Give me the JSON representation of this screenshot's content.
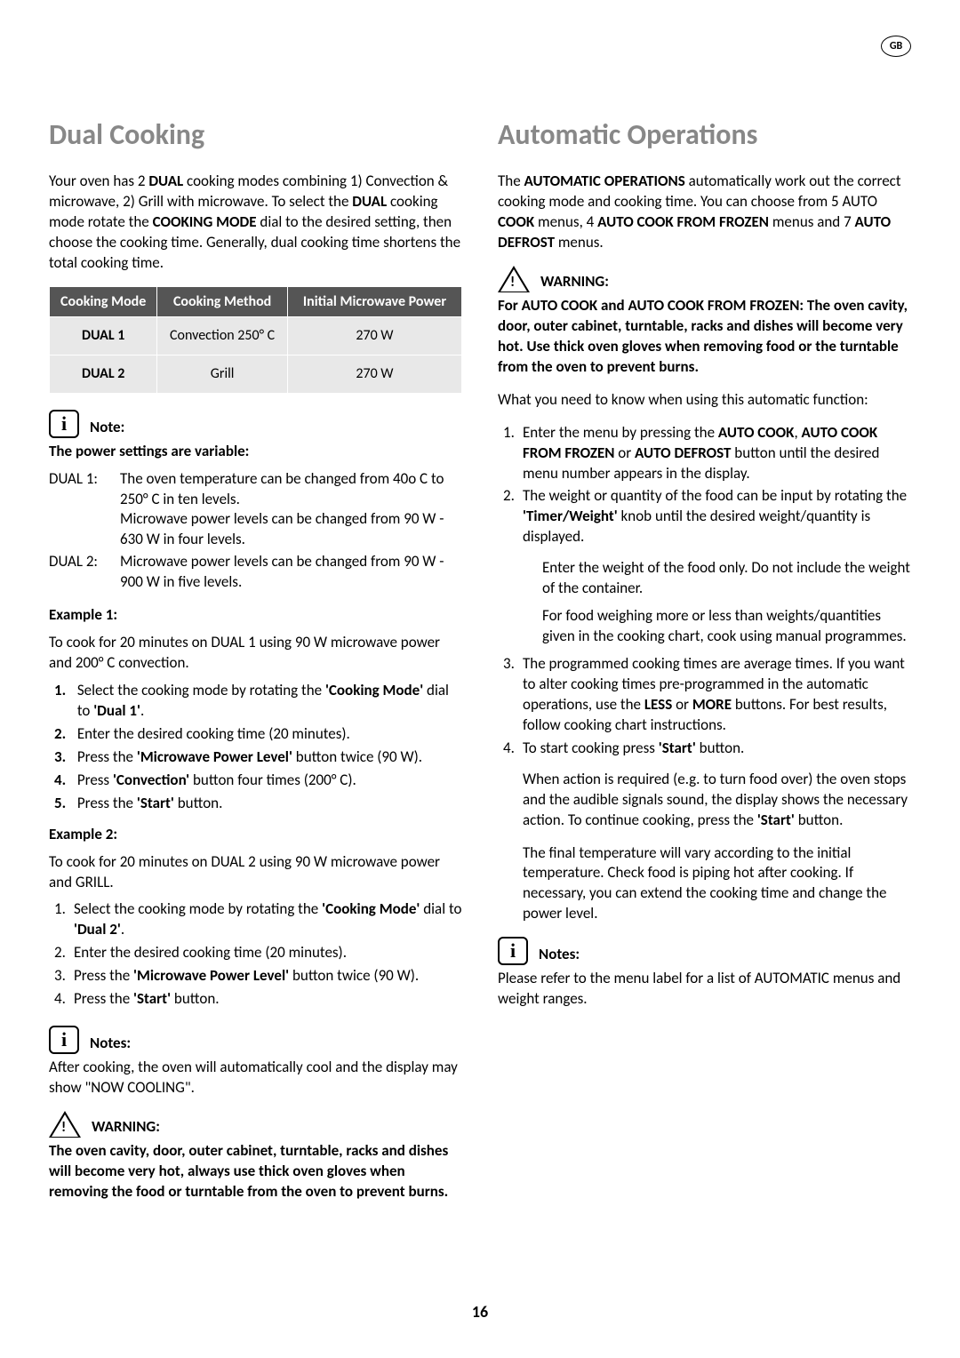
{
  "badge": "GB",
  "page_number": "16",
  "left": {
    "heading": "Dual Cooking",
    "intro": "Your oven has 2 <b>DUAL</b> cooking modes combining 1) Convection & microwave, 2) Grill with microwave. To select the <b>DUAL</b> cooking mode rotate the <b>COOKING MODE</b> dial to the desired setting, then choose the cooking time. Generally, dual cooking time shortens the total cooking time.",
    "table": {
      "headers": [
        "Cooking Mode",
        "Cooking Method",
        "Initial Microwave Power"
      ],
      "rows": [
        [
          "DUAL 1",
          "Convection 250° C",
          "270 W"
        ],
        [
          "DUAL 2",
          "Grill",
          "270 W"
        ]
      ]
    },
    "note_label": "Note:",
    "note_heading": "The power settings are variable:",
    "dual1_label": "DUAL 1:",
    "dual1_line1": "The oven temperature can be changed from 40o C to 250° C in ten levels.",
    "dual1_line2": "Microwave power levels can be changed from 90 W - 630 W in four levels.",
    "dual2_label": "DUAL 2:",
    "dual2_line1": "Microwave power levels can be changed from 90 W - 900 W in five levels.",
    "ex1_label": "Example 1:",
    "ex1_intro": "To cook for 20 minutes on DUAL 1 using 90 W microwave power and 200° C convection.",
    "ex1_steps": [
      "Select the cooking mode by rotating the <b>'Cooking Mode'</b> dial to <b>'Dual 1'</b>.",
      "Enter the desired cooking time (20 minutes).",
      "Press the <b>'Microwave Power Level'</b> button twice (90 W).",
      "Press <b>'Convection'</b> button four times (200° C).",
      "Press the <b>'Start'</b> button."
    ],
    "ex2_label": "Example 2:",
    "ex2_intro": "To cook for 20 minutes on DUAL 2 using 90 W microwave power and GRILL.",
    "ex2_steps": [
      "Select the cooking mode by rotating the <b>'Cooking Mode'</b> dial to <b>'Dual 2'</b>.",
      "Enter the desired cooking time (20 minutes).",
      "Press the <b>'Microwave Power Level'</b> button twice (90 W).",
      "Press the <b>'Start'</b> button."
    ],
    "notes_label": "Notes:",
    "notes_text": "After cooking, the oven will automatically cool and the display may show \"NOW COOLING\".",
    "warn_label": "WARNING:",
    "warn_text": "The oven cavity, door, outer cabinet, turntable, racks and dishes will become very hot, always use thick oven gloves when removing the food or turntable from the oven to prevent burns."
  },
  "right": {
    "heading": "Automatic Operations",
    "intro": "The <b>AUTOMATIC OPERATIONS</b> automatically work out the correct cooking mode and cooking time. You can choose from 5 AUTO <b>COOK</b> menus, 4 <b>AUTO COOK FROM FROZEN</b> menus and 7 <b>AUTO DEFROST</b> menus.",
    "warn_label": "WARNING:",
    "warn_text": "For AUTO COOK and AUTO COOK FROM FROZEN: The oven cavity, door, outer cabinet, turntable, racks and dishes will become very hot. Use thick oven gloves when removing food or the turntable from the oven to prevent burns.",
    "need_know": "What you need to know when using this automatic function:",
    "step1": "Enter the menu by pressing the <b>AUTO COOK</b>, <b>AUTO COOK FROM FROZEN</b> or <b>AUTO DEFROST</b> button until the desired menu number appears in the display.",
    "step2": "The weight or quantity of the food can be input by rotating the <b>'Timer/Weight'</b> knob until the desired weight/quantity is displayed.",
    "step2_sub1": "Enter the weight of the food only. Do not include the weight of the container.",
    "step2_sub2": "For food weighing more or less than weights/quantities given in the cooking chart, cook using manual programmes.",
    "step3": "The programmed cooking times are average times. If you want to alter cooking times pre-programmed in the automatic operations, use the <b>LESS</b> or <b>MORE</b> buttons. For best results, follow cooking chart instructions.",
    "step4": "To start cooking press <b>'Start'</b> button.",
    "para_action": "When action is required (e.g. to turn food over) the oven stops and the audible signals sound, the display shows the necessary action. To continue cooking, press the <b>'Start'</b> button.",
    "para_temp": "The final temperature will vary according to the initial temperature. Check food is piping hot after cooking. If necessary, you can extend the cooking time and change the power level.",
    "notes_label": "Notes:",
    "notes_text": "Please refer to the menu label for a list of AUTOMATIC menus and weight ranges."
  }
}
